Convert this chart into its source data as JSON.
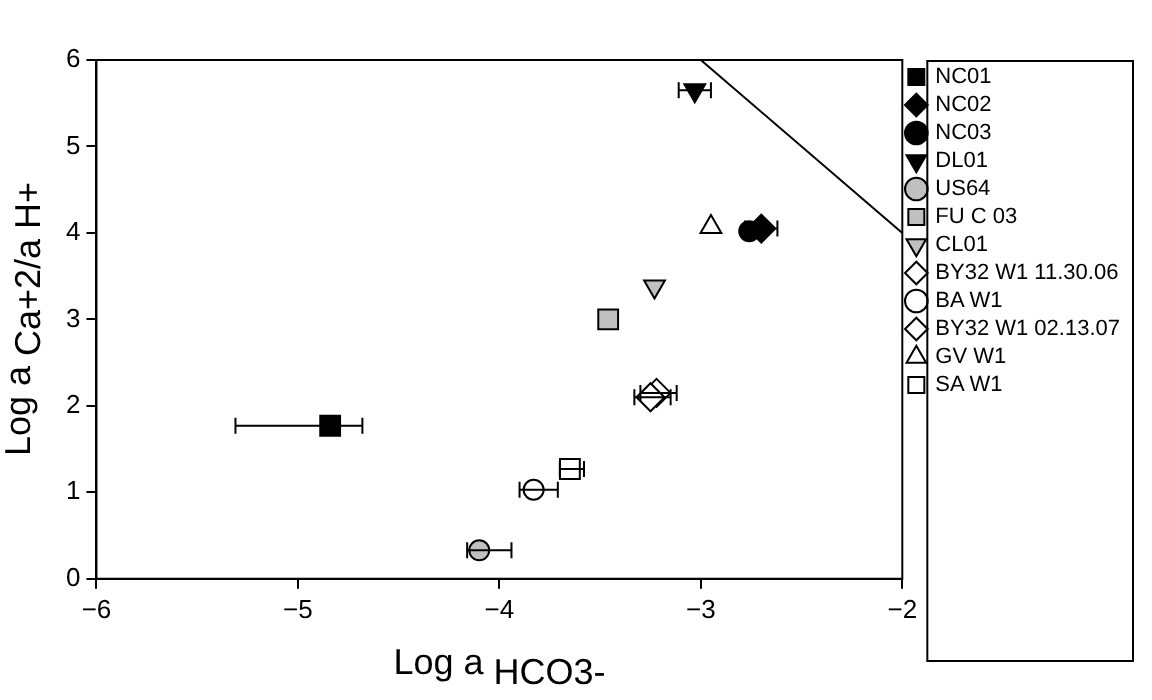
{
  "chart_data": {
    "type": "scatter",
    "xlabel": "Log a $_{HCO3-}$",
    "ylabel": "Log a $_{Ca+2/a H+}$",
    "xlim": [
      -6,
      -2
    ],
    "xticks": [
      -6,
      -5,
      -4,
      -3,
      -2
    ],
    "ylim": [
      0,
      6
    ],
    "yticks": [
      0,
      1,
      2,
      3,
      4,
      5,
      6
    ],
    "grid": false,
    "legend": "right",
    "series": [
      {
        "name": "NC01",
        "color": "#000000",
        "marker": "square",
        "x": [
          -4.84
        ],
        "values": [
          1.77
        ],
        "xerrors": [
          [
            -5.31,
            -4.68
          ]
        ]
      },
      {
        "name": "NC02",
        "color": "#000000",
        "marker": "diamond",
        "x": [
          -2.7
        ],
        "values": [
          4.05
        ],
        "xerrors": [
          0.08
        ]
      },
      {
        "name": "NC03",
        "color": "#000000",
        "marker": "circle",
        "x": [
          -2.76
        ],
        "values": [
          4.02
        ]
      },
      {
        "name": "DL01",
        "color": "#000000",
        "marker": "triangle_down",
        "x": [
          -3.03
        ],
        "values": [
          5.65
        ],
        "xerrors": [
          0.08
        ]
      },
      {
        "name": "US64",
        "color": "#c0c0c0",
        "marker": "circle",
        "x": [
          -4.1
        ],
        "values": [
          0.33
        ],
        "xerrors": [
          [
            -4.16,
            -3.94
          ]
        ]
      },
      {
        "name": "FU C 03",
        "color": "#c0c0c0",
        "marker": "square",
        "x": [
          -3.46
        ],
        "values": [
          3.0
        ]
      },
      {
        "name": "CL01",
        "color": "#c0c0c0",
        "marker": "triangle_down",
        "x": [
          -3.23
        ],
        "values": [
          3.38
        ]
      },
      {
        "name": "BY32 W1 11.30.06",
        "color": "#ffffff",
        "marker": "diamond",
        "x": [
          -3.22
        ],
        "values": [
          2.15
        ],
        "xerrors": [
          [
            -3.3,
            -3.12
          ]
        ]
      },
      {
        "name": "BA W1",
        "color": "#ffffff",
        "marker": "circle",
        "x": [
          -3.83
        ],
        "values": [
          1.03
        ],
        "xerrors": [
          [
            -3.9,
            -3.71
          ]
        ]
      },
      {
        "name": "BY32 W1 02.13.07",
        "color": "#ffffff",
        "marker": "diamond",
        "x": [
          -3.25
        ],
        "values": [
          2.1
        ],
        "xerrors": [
          [
            -3.33,
            -3.15
          ]
        ]
      },
      {
        "name": "GV W1",
        "color": "#ffffff",
        "marker": "triangle",
        "x": [
          -2.95
        ],
        "values": [
          4.07
        ]
      },
      {
        "name": "SA W1",
        "color": "#ffffff",
        "marker": "square",
        "x": [
          -3.65
        ],
        "values": [
          1.27
        ],
        "xerrors": [
          [
            -3.7,
            -3.58
          ]
        ]
      },
      {
        "type": "line",
        "color": "#000000",
        "marker": "none",
        "x": [
          -3,
          -2
        ],
        "values": [
          6,
          4
        ]
      }
    ]
  }
}
